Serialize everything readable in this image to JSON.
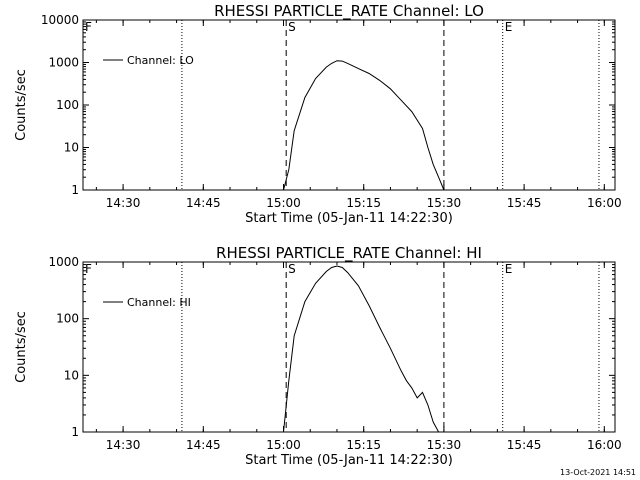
{
  "footer": {
    "timestamp": "13-Oct-2021 14:51"
  },
  "chart_data": [
    {
      "type": "line",
      "title": "RHESSI PARTICLE_RATE Channel: LO",
      "xlabel": "Start Time (05-Jan-11 14:22:30)",
      "ylabel": "Counts/sec",
      "yscale": "log",
      "xlim": [
        "14:22:30",
        "16:02:00"
      ],
      "ylim": [
        1,
        10000
      ],
      "x_ticks": [
        "14:30",
        "14:45",
        "15:00",
        "15:15",
        "15:30",
        "15:45",
        "16:00"
      ],
      "y_ticks": [
        "1",
        "10",
        "100",
        "1000",
        "10000"
      ],
      "grid": false,
      "legend": {
        "position": "top-left",
        "entries": [
          "Channel: LO"
        ]
      },
      "markers": [
        {
          "label": "S",
          "time": "15:00:30",
          "style": "dashed"
        },
        {
          "label": "",
          "time": "15:30:00",
          "style": "dashed"
        },
        {
          "label": "E",
          "time": "15:41:00",
          "style": "dotted"
        },
        {
          "label": "",
          "time": "14:41:00",
          "style": "dotted"
        },
        {
          "label": "",
          "time": "15:59:00",
          "style": "dotted"
        },
        {
          "label": "F",
          "time": "14:22:30",
          "style": "none"
        }
      ],
      "series": [
        {
          "name": "Channel: LO",
          "x": [
            "15:00:00",
            "15:01:00",
            "15:02:00",
            "15:04:00",
            "15:06:00",
            "15:08:00",
            "15:09:00",
            "15:10:00",
            "15:11:00",
            "15:12:00",
            "15:14:00",
            "15:16:00",
            "15:18:00",
            "15:20:00",
            "15:22:00",
            "15:24:00",
            "15:26:00",
            "15:27:00",
            "15:28:00",
            "15:29:00",
            "15:30:00"
          ],
          "y": [
            1,
            3,
            25,
            150,
            420,
            780,
            950,
            1100,
            1080,
            950,
            720,
            550,
            380,
            240,
            130,
            70,
            28,
            10,
            4,
            2,
            1
          ]
        }
      ]
    },
    {
      "type": "line",
      "title": "RHESSI PARTICLE_RATE Channel: HI",
      "xlabel": "Start Time (05-Jan-11 14:22:30)",
      "ylabel": "Counts/sec",
      "yscale": "log",
      "xlim": [
        "14:22:30",
        "16:02:00"
      ],
      "ylim": [
        1,
        1000
      ],
      "x_ticks": [
        "14:30",
        "14:45",
        "15:00",
        "15:15",
        "15:30",
        "15:45",
        "16:00"
      ],
      "y_ticks": [
        "1",
        "10",
        "100",
        "1000"
      ],
      "grid": false,
      "legend": {
        "position": "top-left",
        "entries": [
          "Channel: HI"
        ]
      },
      "markers": [
        {
          "label": "S",
          "time": "15:00:30",
          "style": "dashed"
        },
        {
          "label": "",
          "time": "15:30:00",
          "style": "dashed"
        },
        {
          "label": "E",
          "time": "15:41:00",
          "style": "dotted"
        },
        {
          "label": "",
          "time": "14:41:00",
          "style": "dotted"
        },
        {
          "label": "",
          "time": "15:59:00",
          "style": "dotted"
        },
        {
          "label": "F",
          "time": "14:22:30",
          "style": "none"
        }
      ],
      "series": [
        {
          "name": "Channel: HI",
          "x": [
            "15:00:00",
            "15:01:00",
            "15:02:00",
            "15:04:00",
            "15:06:00",
            "15:08:00",
            "15:09:00",
            "15:10:00",
            "15:11:00",
            "15:12:00",
            "15:14:00",
            "15:16:00",
            "15:18:00",
            "15:20:00",
            "15:22:00",
            "15:23:00",
            "15:24:00",
            "15:25:00",
            "15:26:00",
            "15:27:00",
            "15:28:00",
            "15:29:00"
          ],
          "y": [
            1,
            8,
            50,
            200,
            420,
            680,
            800,
            850,
            800,
            650,
            380,
            170,
            70,
            30,
            12,
            8,
            6,
            4,
            5,
            3,
            1.5,
            1
          ]
        }
      ]
    }
  ]
}
